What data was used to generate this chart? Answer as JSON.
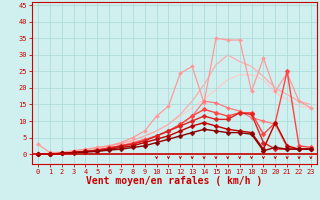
{
  "background_color": "#d0f0f0",
  "grid_color": "#a8d8d8",
  "xlabel": "Vent moyen/en rafales ( km/h )",
  "xlabel_color": "#cc0000",
  "xlabel_fontsize": 7,
  "tick_color": "#cc0000",
  "axis_line_color": "#cc0000",
  "xlim": [
    -0.5,
    23.5
  ],
  "ylim": [
    -3,
    46
  ],
  "yticks": [
    0,
    5,
    10,
    15,
    20,
    25,
    30,
    35,
    40,
    45
  ],
  "xticks": [
    0,
    1,
    2,
    3,
    4,
    5,
    6,
    7,
    8,
    9,
    10,
    11,
    12,
    13,
    14,
    15,
    16,
    17,
    18,
    19,
    20,
    21,
    22,
    23
  ],
  "lines": [
    {
      "x": [
        0,
        1,
        2,
        3,
        4,
        5,
        6,
        7,
        8,
        9,
        10,
        11,
        12,
        13,
        14,
        15,
        16,
        17,
        18,
        19,
        20,
        21,
        22,
        23
      ],
      "y": [
        0,
        0,
        0.3,
        1.0,
        1.5,
        2.0,
        2.5,
        3.0,
        4.0,
        5.5,
        7.0,
        9.0,
        11.5,
        14.0,
        16.5,
        19.5,
        22.5,
        24.0,
        24.0,
        22.5,
        18.5,
        16.5,
        14.5,
        14.0
      ],
      "color": "#ffcccc",
      "linewidth": 0.9,
      "marker": null,
      "markersize": 0,
      "zorder": 1
    },
    {
      "x": [
        0,
        1,
        2,
        3,
        4,
        5,
        6,
        7,
        8,
        9,
        10,
        11,
        12,
        13,
        14,
        15,
        16,
        17,
        18,
        19,
        20,
        21,
        22,
        23
      ],
      "y": [
        0,
        0,
        0.3,
        0.8,
        1.2,
        1.8,
        2.5,
        3.2,
        4.2,
        5.5,
        7.0,
        9.0,
        12.0,
        16.0,
        21.0,
        27.0,
        30.0,
        28.0,
        26.5,
        23.5,
        20.0,
        18.0,
        16.0,
        15.0
      ],
      "color": "#ffaaaa",
      "linewidth": 0.9,
      "marker": null,
      "markersize": 0,
      "zorder": 1
    },
    {
      "x": [
        0,
        1,
        2,
        3,
        4,
        5,
        6,
        7,
        8,
        9,
        10,
        11,
        12,
        13,
        14,
        15,
        16,
        17,
        18,
        19,
        20,
        21,
        22,
        23
      ],
      "y": [
        3.0,
        0.5,
        0.5,
        1.0,
        1.5,
        2.0,
        2.5,
        3.5,
        5.0,
        7.0,
        11.5,
        14.5,
        24.5,
        26.5,
        15.5,
        35.0,
        34.5,
        34.5,
        19.0,
        29.0,
        19.0,
        24.5,
        16.0,
        14.0
      ],
      "color": "#ff9999",
      "linewidth": 0.9,
      "marker": "D",
      "markersize": 2.0,
      "zorder": 2
    },
    {
      "x": [
        0,
        1,
        2,
        3,
        4,
        5,
        6,
        7,
        8,
        9,
        10,
        11,
        12,
        13,
        14,
        15,
        16,
        17,
        18,
        19,
        20,
        21,
        22,
        23
      ],
      "y": [
        0,
        0,
        0.2,
        0.5,
        0.8,
        1.2,
        2.0,
        2.5,
        3.5,
        4.5,
        5.5,
        7.0,
        9.0,
        11.5,
        16.0,
        15.5,
        14.0,
        13.0,
        11.0,
        10.0,
        9.0,
        2.0,
        1.5,
        1.5
      ],
      "color": "#ff7777",
      "linewidth": 0.9,
      "marker": "D",
      "markersize": 2.0,
      "zorder": 3
    },
    {
      "x": [
        0,
        1,
        2,
        3,
        4,
        5,
        6,
        7,
        8,
        9,
        10,
        11,
        12,
        13,
        14,
        15,
        16,
        17,
        18,
        19,
        20,
        21,
        22,
        23
      ],
      "y": [
        0,
        0,
        0.2,
        0.5,
        0.8,
        1.2,
        1.8,
        2.5,
        3.2,
        4.2,
        5.5,
        7.0,
        9.0,
        11.5,
        13.5,
        12.5,
        11.5,
        12.5,
        12.5,
        6.0,
        9.5,
        25.0,
        2.5,
        2.0
      ],
      "color": "#ff4444",
      "linewidth": 1.0,
      "marker": "D",
      "markersize": 2.5,
      "zorder": 4
    },
    {
      "x": [
        0,
        1,
        2,
        3,
        4,
        5,
        6,
        7,
        8,
        9,
        10,
        11,
        12,
        13,
        14,
        15,
        16,
        17,
        18,
        19,
        20,
        21,
        22,
        23
      ],
      "y": [
        0,
        0,
        0.2,
        0.5,
        0.8,
        1.2,
        1.8,
        2.5,
        3.0,
        4.0,
        5.5,
        7.0,
        8.5,
        10.0,
        11.5,
        10.5,
        10.5,
        12.5,
        12.0,
        3.5,
        1.5,
        1.5,
        1.5,
        1.5
      ],
      "color": "#dd2222",
      "linewidth": 1.0,
      "marker": "D",
      "markersize": 2.5,
      "zorder": 4
    },
    {
      "x": [
        0,
        1,
        2,
        3,
        4,
        5,
        6,
        7,
        8,
        9,
        10,
        11,
        12,
        13,
        14,
        15,
        16,
        17,
        18,
        19,
        20,
        21,
        22,
        23
      ],
      "y": [
        0,
        0,
        0.2,
        0.5,
        0.8,
        1.0,
        1.5,
        2.0,
        2.5,
        3.5,
        4.5,
        5.5,
        7.0,
        8.5,
        9.5,
        8.5,
        7.5,
        7.0,
        6.5,
        1.5,
        9.5,
        2.5,
        1.5,
        1.5
      ],
      "color": "#bb0000",
      "linewidth": 1.0,
      "marker": "D",
      "markersize": 2.5,
      "zorder": 5
    },
    {
      "x": [
        0,
        1,
        2,
        3,
        4,
        5,
        6,
        7,
        8,
        9,
        10,
        11,
        12,
        13,
        14,
        15,
        16,
        17,
        18,
        19,
        20,
        21,
        22,
        23
      ],
      "y": [
        0,
        0,
        0.2,
        0.4,
        0.6,
        0.8,
        1.2,
        1.5,
        2.0,
        2.5,
        3.5,
        4.5,
        5.5,
        6.5,
        7.5,
        7.0,
        6.5,
        6.5,
        6.0,
        1.0,
        2.0,
        1.5,
        1.5,
        1.5
      ],
      "color": "#880000",
      "linewidth": 1.0,
      "marker": "D",
      "markersize": 2.5,
      "zorder": 5
    }
  ],
  "bottom_line_y": 0,
  "tick_arrow_xs": [
    10,
    11,
    12,
    13,
    14,
    15,
    16,
    17,
    18,
    19,
    20,
    21,
    22,
    23
  ]
}
